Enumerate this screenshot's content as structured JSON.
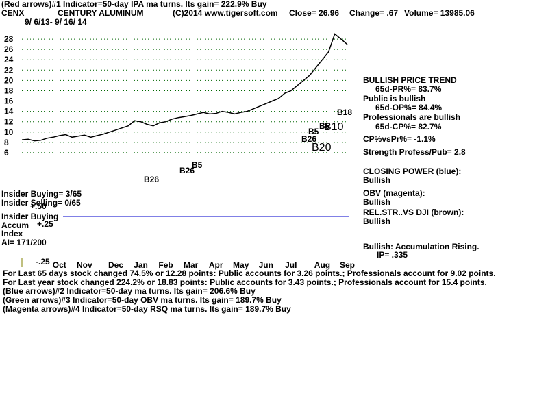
{
  "chart_data": {
    "type": "line",
    "title": "(Red arrows)#1 Indicator=50-day IPA ma turns. Its gain= 222.9% Buy",
    "header": [
      "CENX",
      "CENTURY ALUMINUM",
      "(C)2014 www.tigersoft.com",
      "Close=  26.96",
      "Change= .67",
      "Volume= 13985.06"
    ],
    "subtitle": "9/ 6/13- 9/ 16/ 14",
    "categories": [
      null,
      null,
      null,
      null,
      null,
      null,
      "Oct",
      null,
      null,
      null,
      "Nov",
      null,
      null,
      null,
      null,
      "Dec",
      null,
      null,
      null,
      "Jan",
      null,
      null,
      null,
      "Feb",
      null,
      null,
      null,
      "Mar",
      null,
      null,
      null,
      "Apr",
      null,
      null,
      null,
      "May",
      null,
      null,
      null,
      "Jun",
      null,
      null,
      null,
      "Jul",
      null,
      null,
      null,
      null,
      "Aug",
      null,
      null,
      null,
      "Sep"
    ],
    "values": [
      8.5,
      8.6,
      8.3,
      8.4,
      8.8,
      9.0,
      9.3,
      9.5,
      9.0,
      9.2,
      9.4,
      9.0,
      9.3,
      9.6,
      10.0,
      10.4,
      10.8,
      11.2,
      12.2,
      12.0,
      11.5,
      11.2,
      11.8,
      12.0,
      12.5,
      12.8,
      13.0,
      13.2,
      13.5,
      13.8,
      13.5,
      13.6,
      14.0,
      13.8,
      13.5,
      13.8,
      14.0,
      14.5,
      15.0,
      15.5,
      16.0,
      16.5,
      17.5,
      18.0,
      19.0,
      20.0,
      21.0,
      22.5,
      24.0,
      25.5,
      29.0,
      28.0,
      26.96
    ],
    "color": "#000000",
    "ylim": [
      4,
      30
    ],
    "yticks": [
      6,
      8,
      10,
      12,
      14,
      16,
      18,
      20,
      22,
      24,
      26,
      28
    ],
    "grid": true,
    "annotations": [
      "B26",
      "B26",
      "B5",
      "B26",
      "B5",
      "B5",
      "B10",
      "B20",
      "B18"
    ],
    "right_panel": [
      "BULLISH PRICE TREND",
      "65d-PR%= 83.7%",
      "Public is bullish",
      "65d-OP%= 84.4%",
      "Professionals are bullish",
      "65d-CP%= 82.7%",
      "CP%vsPr%= -1.1%",
      "Strength Profess/Pub= 2.8",
      "CLOSING POWER (blue):",
      "Bullish",
      "OBV (magenta):",
      "Bullish",
      "REL.STR..VS DJI (brown):",
      "Bullish",
      "Bullish: Accumulation Rising.",
      "IP=  .335"
    ],
    "left_panel": [
      "Insider Buying= 3/65",
      "Insider Selling= 0/65",
      "+.50",
      "Insider Buying",
      "Accum",
      "+.25",
      "Index",
      "AI= 171/200",
      "-.25"
    ],
    "footer": [
      "For Last 65 days stock changed  74.5% or  12.28 points:  Public accounts for  3.26 points.;  Professionals account for  9.02 points.",
      "For Last year stock changed  224.2% or  18.83 points:  Public accounts for  3.43 points.;  Professionals account for  15.4 points.",
      "(Blue arrows)#2 Indicator=50-day ma turns. Its gain= 206.6% Buy",
      "(Green arrows)#3 Indicator=50-day OBV ma turns. Its gain= 189.7% Buy",
      "(Magenta arrows)#4 Indicator=50-day RSQ ma turns. Its gain= 189.7% Buy"
    ]
  }
}
